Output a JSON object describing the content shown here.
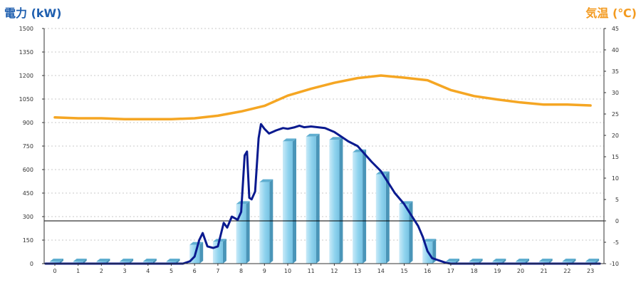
{
  "chart_data": {
    "type": "bar+line",
    "y_left": {
      "label": "電力 (kW)",
      "range": [
        0,
        1500
      ],
      "ticks": [
        0,
        150,
        300,
        450,
        600,
        750,
        900,
        1050,
        1200,
        1350,
        1500
      ],
      "color": "#1F5FAF"
    },
    "y_right": {
      "label": "気温 (℃)",
      "range": [
        -10,
        45
      ],
      "ticks": [
        -10,
        -5,
        0,
        5,
        10,
        15,
        20,
        25,
        30,
        35,
        40,
        45
      ],
      "color": "#F39A1F"
    },
    "x": {
      "categories": [
        "0",
        "1",
        "2",
        "3",
        "4",
        "5",
        "6",
        "7",
        "8",
        "9",
        "10",
        "11",
        "12",
        "13",
        "14",
        "15",
        "16",
        "17",
        "18",
        "19",
        "20",
        "21",
        "22",
        "23"
      ]
    },
    "grid": true,
    "series": [
      {
        "kind": "bar",
        "axis": "left",
        "color": "#87CEEB",
        "values": [
          0,
          0,
          0,
          0,
          0,
          0,
          120,
          140,
          380,
          520,
          780,
          810,
          790,
          710,
          570,
          380,
          140,
          10,
          0,
          0,
          0,
          0,
          0,
          0
        ]
      },
      {
        "kind": "line",
        "axis": "left",
        "color": "#0A1A8F",
        "points": [
          [
            -0.4,
            0
          ],
          [
            5.5,
            0
          ],
          [
            5.8,
            15
          ],
          [
            6.0,
            45
          ],
          [
            6.2,
            150
          ],
          [
            6.35,
            195
          ],
          [
            6.55,
            110
          ],
          [
            6.8,
            100
          ],
          [
            7.0,
            110
          ],
          [
            7.25,
            260
          ],
          [
            7.4,
            230
          ],
          [
            7.6,
            300
          ],
          [
            7.85,
            280
          ],
          [
            8.0,
            330
          ],
          [
            8.15,
            690
          ],
          [
            8.25,
            715
          ],
          [
            8.35,
            420
          ],
          [
            8.45,
            410
          ],
          [
            8.6,
            460
          ],
          [
            8.75,
            800
          ],
          [
            8.85,
            890
          ],
          [
            9.0,
            860
          ],
          [
            9.2,
            830
          ],
          [
            9.5,
            850
          ],
          [
            9.8,
            865
          ],
          [
            10.0,
            860
          ],
          [
            10.3,
            870
          ],
          [
            10.5,
            880
          ],
          [
            10.7,
            870
          ],
          [
            11.0,
            875
          ],
          [
            11.3,
            870
          ],
          [
            11.6,
            865
          ],
          [
            12.0,
            840
          ],
          [
            12.3,
            810
          ],
          [
            12.6,
            780
          ],
          [
            13.0,
            750
          ],
          [
            13.3,
            700
          ],
          [
            13.6,
            650
          ],
          [
            14.0,
            590
          ],
          [
            14.3,
            520
          ],
          [
            14.6,
            450
          ],
          [
            15.0,
            380
          ],
          [
            15.3,
            310
          ],
          [
            15.6,
            240
          ],
          [
            15.8,
            170
          ],
          [
            16.0,
            80
          ],
          [
            16.2,
            35
          ],
          [
            16.4,
            25
          ],
          [
            16.6,
            15
          ],
          [
            16.8,
            5
          ],
          [
            17.0,
            0
          ],
          [
            23.4,
            0
          ]
        ]
      },
      {
        "kind": "line",
        "axis": "right",
        "color": "#F5A623",
        "points": [
          [
            0,
            24.2
          ],
          [
            1,
            24.0
          ],
          [
            2,
            24.0
          ],
          [
            3,
            23.8
          ],
          [
            4,
            23.8
          ],
          [
            5,
            23.8
          ],
          [
            6,
            24.0
          ],
          [
            7,
            24.6
          ],
          [
            8,
            25.6
          ],
          [
            9,
            26.9
          ],
          [
            10,
            29.3
          ],
          [
            11,
            30.9
          ],
          [
            12,
            32.3
          ],
          [
            13,
            33.4
          ],
          [
            14,
            34.0
          ],
          [
            15,
            33.5
          ],
          [
            16,
            32.9
          ],
          [
            17,
            30.6
          ],
          [
            18,
            29.2
          ],
          [
            19,
            28.4
          ],
          [
            20,
            27.7
          ],
          [
            21,
            27.2
          ],
          [
            22,
            27.2
          ],
          [
            23,
            27.0
          ]
        ]
      }
    ]
  }
}
